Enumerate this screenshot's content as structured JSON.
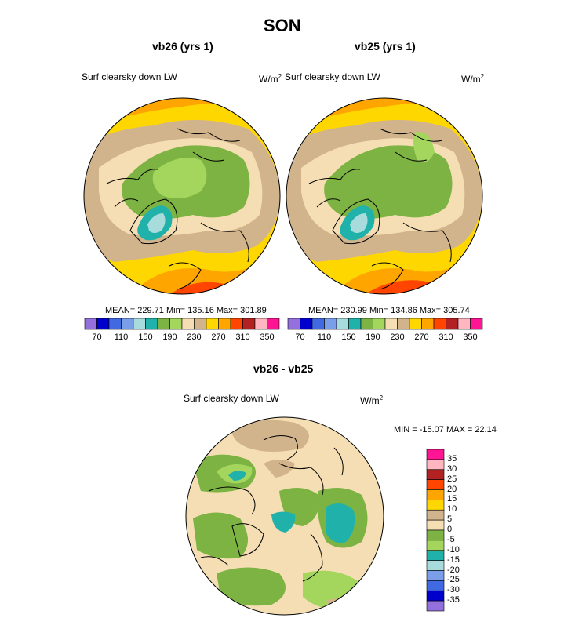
{
  "page": {
    "title": "SON"
  },
  "panel_left": {
    "title": "vb26 (yrs 1)",
    "field": "Surf clearsky down LW",
    "units": "W/m",
    "units_exp": "2",
    "stats": "MEAN= 229.71  Min= 135.16  Max= 301.89"
  },
  "panel_right": {
    "title": "vb25 (yrs 1)",
    "field": "Surf clearsky down LW",
    "units": "W/m",
    "units_exp": "2",
    "stats": "MEAN= 230.99  Min= 134.86  Max= 305.74"
  },
  "panel_diff": {
    "title": "vb26 - vb25",
    "field": "Surf clearsky down LW",
    "units": "W/m",
    "units_exp": "2",
    "stats": "MIN = -15.07 MAX =  22.14"
  },
  "colorbar_abs": {
    "labels": [
      "70",
      "110",
      "150",
      "190",
      "230",
      "270",
      "310",
      "350"
    ],
    "colors": [
      "#9370db",
      "#0000cd",
      "#4169e1",
      "#7b9ee8",
      "#a8dcdc",
      "#20b2aa",
      "#7cb342",
      "#a4d65e",
      "#f5deb3",
      "#d2b48c",
      "#ffd700",
      "#ffa500",
      "#ff4500",
      "#b22222",
      "#ffb6c1",
      "#ff1493"
    ]
  },
  "colorbar_diff": {
    "labels": [
      "35",
      "30",
      "25",
      "20",
      "15",
      "10",
      "5",
      "0",
      "-5",
      "-10",
      "-15",
      "-20",
      "-25",
      "-30",
      "-35"
    ],
    "colors": [
      "#ff1493",
      "#ffb6c1",
      "#b22222",
      "#ff4500",
      "#ffa500",
      "#ffd700",
      "#d2b48c",
      "#f5deb3",
      "#7cb342",
      "#a4d65e",
      "#20b2aa",
      "#a8dcdc",
      "#7b9ee8",
      "#4169e1",
      "#0000cd",
      "#9370db"
    ]
  },
  "map_colors": {
    "ocean_warm": "#ffd700",
    "ocean_hot": "#ffa500",
    "ocean_hottest": "#ff4500",
    "land_mid": "#d2b48c",
    "land_light": "#f5deb3",
    "arctic_green": "#7cb342",
    "arctic_light": "#a4d65e",
    "greenland_teal": "#20b2aa",
    "greenland_pale": "#a8dcdc",
    "diff_pos": "#d2b48c",
    "diff_zero": "#f5deb3",
    "diff_neg": "#7cb342",
    "diff_neg_light": "#a4d65e",
    "diff_teal": "#20b2aa"
  }
}
